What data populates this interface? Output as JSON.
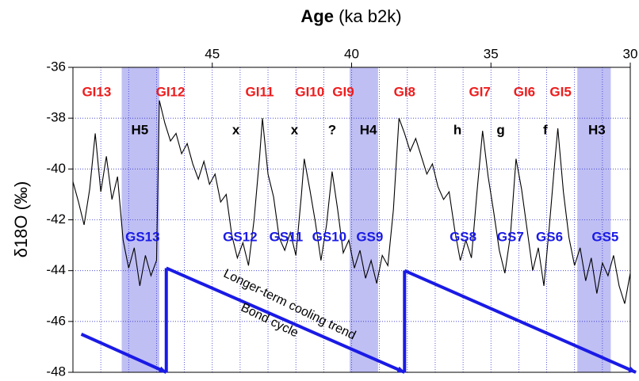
{
  "chart_data": {
    "type": "line",
    "x_label_bold": "Age",
    "x_label": "(ka b2k)",
    "y_label": "δ18O (‰)",
    "xlim": [
      50,
      30
    ],
    "ylim": [
      -48,
      -36
    ],
    "xticks": [
      45,
      40,
      35,
      30
    ],
    "yticks": [
      -36,
      -38,
      -40,
      -42,
      -44,
      -46,
      -48
    ],
    "xgrid": [
      49,
      48,
      47,
      46,
      45,
      44,
      43,
      42,
      41,
      40,
      39,
      38,
      37,
      36,
      35,
      34,
      33,
      32,
      31
    ],
    "grid": true,
    "series": [
      {
        "color": "#000000",
        "x": [
          50.0,
          49.8,
          49.6,
          49.4,
          49.2,
          49.0,
          48.8,
          48.6,
          48.4,
          48.2,
          48.0,
          47.8,
          47.6,
          47.4,
          47.2,
          47.0,
          46.9,
          46.7,
          46.5,
          46.3,
          46.1,
          45.9,
          45.7,
          45.5,
          45.3,
          45.1,
          44.9,
          44.7,
          44.5,
          44.3,
          44.1,
          43.9,
          43.7,
          43.5,
          43.3,
          43.2,
          43.0,
          42.8,
          42.6,
          42.4,
          42.2,
          42.0,
          41.8,
          41.7,
          41.5,
          41.3,
          41.1,
          40.9,
          40.7,
          40.5,
          40.3,
          40.1,
          39.9,
          39.7,
          39.5,
          39.3,
          39.1,
          38.9,
          38.7,
          38.5,
          38.3,
          38.1,
          37.9,
          37.7,
          37.5,
          37.3,
          37.1,
          36.9,
          36.7,
          36.5,
          36.3,
          36.1,
          35.9,
          35.7,
          35.5,
          35.3,
          35.1,
          34.9,
          34.7,
          34.5,
          34.3,
          34.1,
          33.9,
          33.7,
          33.5,
          33.3,
          33.1,
          32.9,
          32.7,
          32.6,
          32.4,
          32.2,
          32.0,
          31.8,
          31.6,
          31.4,
          31.2,
          31.0,
          30.8,
          30.6,
          30.4,
          30.2,
          30.0
        ],
        "values": [
          -40.5,
          -41.3,
          -42.2,
          -40.8,
          -38.6,
          -40.9,
          -39.5,
          -41.2,
          -40.3,
          -42.8,
          -43.9,
          -43.1,
          -44.6,
          -43.4,
          -44.2,
          -43.6,
          -37.3,
          -38.2,
          -38.9,
          -38.6,
          -39.4,
          -39.0,
          -39.8,
          -40.4,
          -39.7,
          -40.6,
          -40.2,
          -41.3,
          -41.0,
          -42.6,
          -43.5,
          -42.9,
          -43.8,
          -42.0,
          -39.5,
          -38.0,
          -40.2,
          -41.1,
          -42.7,
          -43.2,
          -42.5,
          -43.4,
          -41.0,
          -39.6,
          -40.8,
          -42.1,
          -43.6,
          -42.2,
          -40.1,
          -41.6,
          -43.3,
          -42.8,
          -43.9,
          -43.2,
          -44.3,
          -43.6,
          -44.5,
          -43.4,
          -43.8,
          -41.6,
          -38.0,
          -38.6,
          -39.3,
          -38.8,
          -39.5,
          -40.2,
          -39.8,
          -40.7,
          -41.2,
          -40.9,
          -42.4,
          -43.6,
          -42.8,
          -43.5,
          -40.9,
          -38.5,
          -40.3,
          -41.7,
          -43.2,
          -44.1,
          -42.6,
          -39.6,
          -40.8,
          -42.4,
          -44.0,
          -43.1,
          -44.6,
          -42.2,
          -39.6,
          -38.4,
          -40.9,
          -42.7,
          -43.8,
          -43.1,
          -44.4,
          -43.5,
          -44.9,
          -43.7,
          -44.2,
          -43.4,
          -44.6,
          -45.3,
          -44.1
        ]
      }
    ],
    "bands": [
      {
        "label": "H5",
        "x0": 48.25,
        "x1": 46.9
      },
      {
        "label": "H4",
        "x0": 40.07,
        "x1": 39.05
      },
      {
        "label": "H3",
        "x0": 31.9,
        "x1": 30.7
      }
    ],
    "interstadials": {
      "y": -37,
      "labels": [
        "GI13",
        "GI12",
        "GI11",
        "GI10",
        "GI9",
        "GI8",
        "GI7",
        "GI6",
        "GI5"
      ],
      "x": [
        49.15,
        46.5,
        43.3,
        41.5,
        40.3,
        38.1,
        35.4,
        33.8,
        32.5
      ]
    },
    "events": {
      "y": -38.5,
      "labels": [
        "H5",
        "x",
        "x",
        "?",
        "H4",
        "h",
        "g",
        "f",
        "H3"
      ],
      "x": [
        47.6,
        44.15,
        42.05,
        40.7,
        39.4,
        36.2,
        34.65,
        33.05,
        31.2
      ]
    },
    "stadials": {
      "y": -42.7,
      "labels": [
        "GS13",
        "GS12",
        "GS11",
        "GS10",
        "GS9",
        "GS8",
        "GS7",
        "GS6",
        "GS5"
      ],
      "x": [
        47.5,
        44.0,
        42.35,
        40.8,
        39.35,
        36.0,
        34.3,
        32.9,
        30.9
      ]
    },
    "cycle_line": {
      "color": "#1a1ae6",
      "x": [
        49.7,
        46.65,
        46.65,
        38.1,
        38.1,
        29.8
      ],
      "y": [
        -46.5,
        -48,
        -43.9,
        -48,
        -44,
        -48
      ]
    },
    "notes": [
      {
        "text": "Longer-term cooling trend",
        "x": 42.23,
        "y": -45.35
      },
      {
        "text": "Bond cycle",
        "x": 42.95,
        "y": -45.97
      }
    ]
  }
}
